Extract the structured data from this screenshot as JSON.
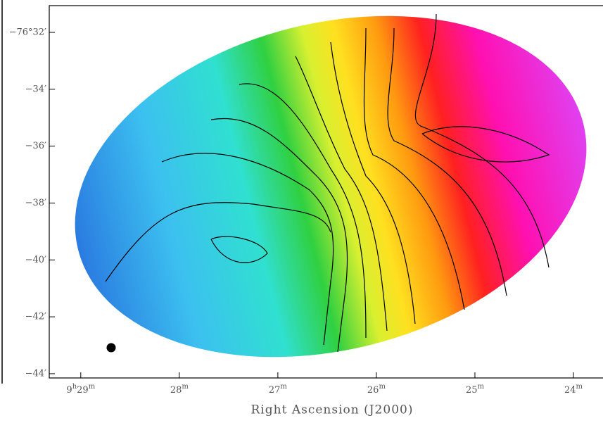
{
  "chart_data": {
    "type": "image",
    "xlabel": "Right Ascension (J2000)",
    "xlim": [
      29.32,
      23.7
    ],
    "xticks": [
      {
        "value": 29,
        "label": "9h29m"
      },
      {
        "value": 28,
        "label": "28m"
      },
      {
        "value": 27,
        "label": "27m"
      },
      {
        "value": 26,
        "label": "26m"
      },
      {
        "value": 25,
        "label": "25m"
      },
      {
        "value": 24,
        "label": "24m"
      }
    ],
    "ylim": [
      -44.15,
      -31.06
    ],
    "yticks": [
      {
        "value": -32,
        "label": "−76°32′"
      },
      {
        "value": -34,
        "label": "−34′"
      },
      {
        "value": -36,
        "label": "−36′"
      },
      {
        "value": -38,
        "label": "−38′"
      },
      {
        "value": -40,
        "label": "−40′"
      },
      {
        "value": -42,
        "label": "−42′"
      },
      {
        "value": -44,
        "label": "−44′"
      }
    ]
  }
}
